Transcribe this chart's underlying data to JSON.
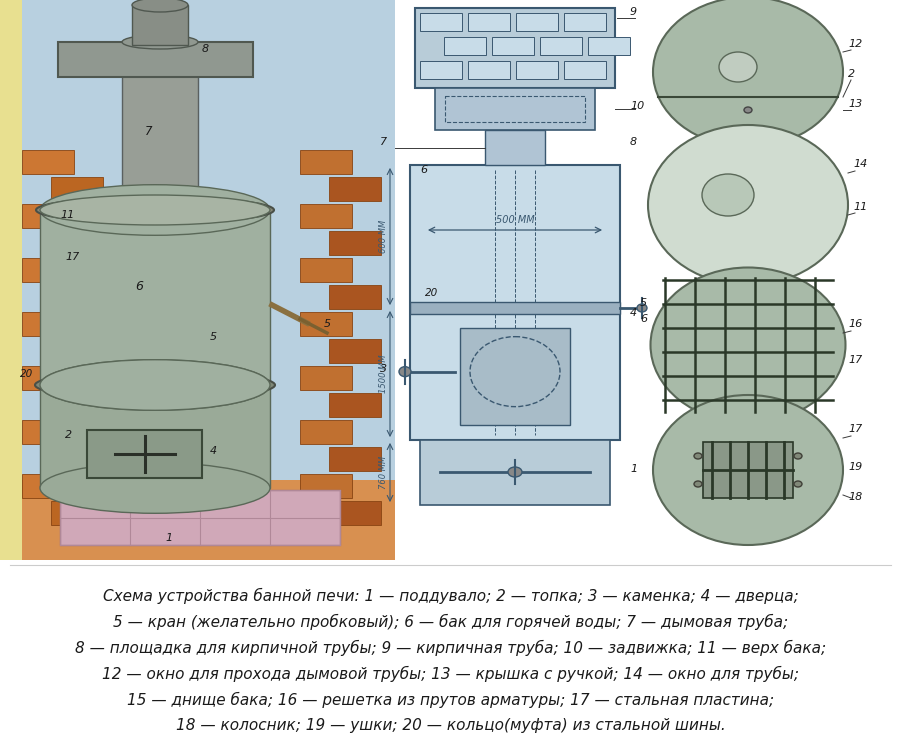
{
  "bg_color": "#f0eeeb",
  "figure_width": 9.01,
  "figure_height": 7.52,
  "dpi": 100,
  "caption_lines": [
    "Схема устройства банной печи: 1 — поддувало; 2 — топка; 3 — каменка; 4 — дверца;",
    "5 — кран (желательно пробковый); 6 — бак для горячей воды; 7 — дымовая труба;",
    "8 — площадка для кирпичной трубы; 9 — кирпичная труба; 10 — задвижка; 11 — верх бака;",
    "12 — окно для прохода дымовой трубы; 13 — крышка с ручкой; 14 — окно для трубы;",
    "15 — днище бака; 16 — решетка из прутов арматуры; 17 — стальная пластина;",
    "18 — колосник; 19 — ушки; 20 — кольцо(муфта) из стальной шины."
  ],
  "caption_fontsize": 11.0,
  "wall_blue": "#b8d0e0",
  "wall_yellow": "#f0e070",
  "brick_orange": "#cc7733",
  "brick_dark": "#aa5520",
  "floor_orange": "#e09848",
  "base_pink": "#d8a0b8",
  "cyl_gray": "#9aaa98",
  "cyl_dark": "#606858",
  "pipe_gray": "#909888",
  "platform_gray": "#8a9888",
  "tech_blue": "#b0c8d8",
  "tech_line": "#3a5870",
  "tech_bg": "#c8dce8",
  "circle_gray": "#a8baa8",
  "circle_light": "#c8d8c8",
  "white": "#ffffff"
}
